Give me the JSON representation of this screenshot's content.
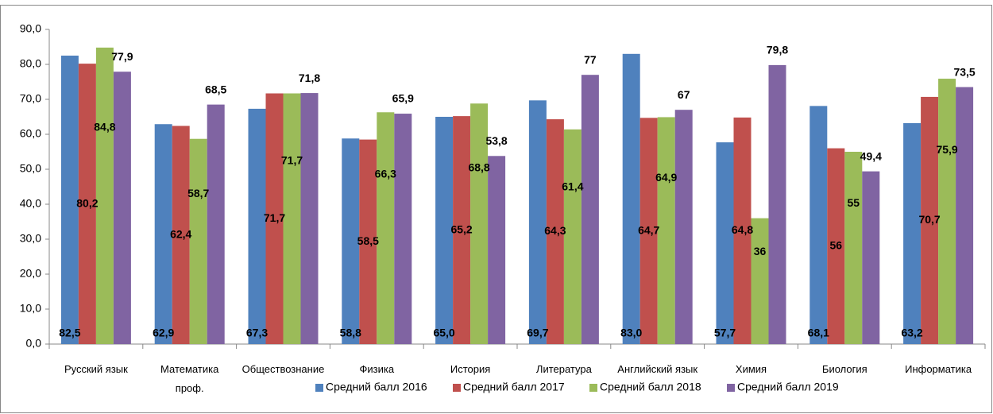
{
  "chart_data": {
    "type": "bar",
    "categories": [
      "Русский язык",
      "Математика\nпроф.",
      "Обществознание",
      "Физика",
      "История",
      "Литература",
      "Английский язык",
      "Химия",
      "Биология",
      "Информатика"
    ],
    "series": [
      {
        "name": "Средний балл 2016",
        "color": "#4f81bd",
        "values": [
          82.5,
          62.9,
          67.3,
          58.8,
          65.0,
          69.7,
          83.0,
          57.7,
          68.1,
          63.2
        ],
        "value_labels": [
          "82,5",
          "62,9",
          "67,3",
          "58,8",
          "65,0",
          "69,7",
          "83,0",
          "57,7",
          "68,1",
          "63,2"
        ]
      },
      {
        "name": "Средний балл 2017",
        "color": "#c0504d",
        "values": [
          80.2,
          62.4,
          71.7,
          58.5,
          65.2,
          64.3,
          64.7,
          64.8,
          56,
          70.7
        ],
        "value_labels": [
          "80,2",
          "62,4",
          "71,7",
          "58,5",
          "65,2",
          "64,3",
          "64,7",
          "64,8",
          "56",
          "70,7"
        ]
      },
      {
        "name": "Средний балл 2018",
        "color": "#9bbb59",
        "values": [
          84.8,
          58.7,
          71.7,
          66.3,
          68.8,
          61.4,
          64.9,
          36,
          55,
          75.9
        ],
        "value_labels": [
          "84,8",
          "58,7",
          "71,7",
          "66,3",
          "68,8",
          "61,4",
          "64,9",
          "36",
          "55",
          "75,9"
        ]
      },
      {
        "name": "Средний балл 2019",
        "color": "#8064a2",
        "values": [
          77.9,
          68.5,
          71.8,
          65.9,
          53.8,
          77,
          67,
          79.8,
          49.4,
          73.5
        ],
        "value_labels": [
          "77,9",
          "68,5",
          "71,8",
          "65,9",
          "53,8",
          "77",
          "67",
          "79,8",
          "49,4",
          "73,5"
        ]
      }
    ],
    "ylim": [
      0,
      90
    ],
    "yticks": [
      {
        "value": 0,
        "label": "0,0"
      },
      {
        "value": 10,
        "label": "10,0"
      },
      {
        "value": 20,
        "label": "20,0"
      },
      {
        "value": 30,
        "label": "30,0"
      },
      {
        "value": 40,
        "label": "40,0"
      },
      {
        "value": 50,
        "label": "50,0"
      },
      {
        "value": 60,
        "label": "60,0"
      },
      {
        "value": 70,
        "label": "70,0"
      },
      {
        "value": 80,
        "label": "80,0"
      },
      {
        "value": 90,
        "label": "90,0"
      }
    ],
    "grid": false,
    "legend": "bottom"
  }
}
